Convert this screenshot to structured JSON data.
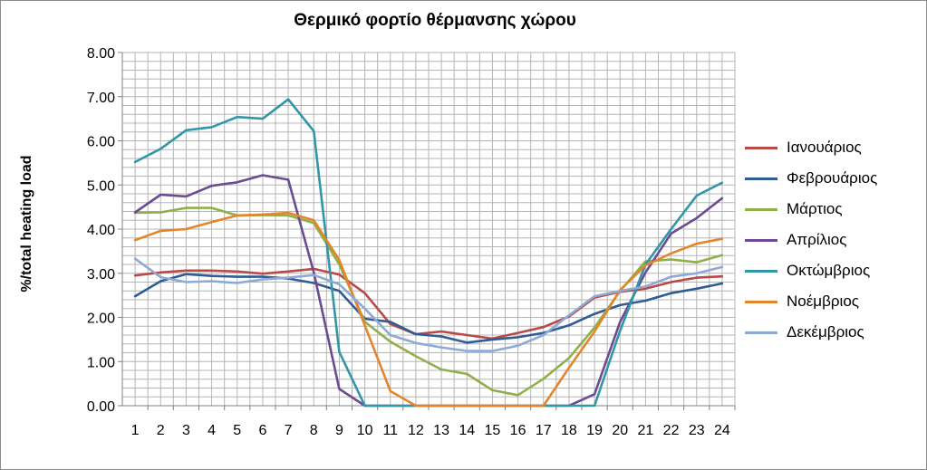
{
  "chart_data": {
    "type": "line",
    "title": "Θερμικό φορτίο θέρμανσης χώρου",
    "xlabel": "",
    "ylabel": "%/total heating load",
    "ylim": [
      0,
      8
    ],
    "yticks": [
      "0.00",
      "1.00",
      "2.00",
      "3.00",
      "4.00",
      "5.00",
      "6.00",
      "7.00",
      "8.00"
    ],
    "x": [
      1,
      2,
      3,
      4,
      5,
      6,
      7,
      8,
      9,
      10,
      11,
      12,
      13,
      14,
      15,
      16,
      17,
      18,
      19,
      20,
      21,
      22,
      23,
      24
    ],
    "grid": true,
    "legend_position": "right",
    "series": [
      {
        "name": "Ιανουάριος",
        "color": "#b94a48",
        "values": [
          2.95,
          3.02,
          3.06,
          3.06,
          3.04,
          2.99,
          3.04,
          3.1,
          2.97,
          2.55,
          1.85,
          1.62,
          1.68,
          1.6,
          1.52,
          1.65,
          1.78,
          2.02,
          2.45,
          2.58,
          2.65,
          2.8,
          2.9,
          2.93
        ]
      },
      {
        "name": "Φεβρουάριος",
        "color": "#2f5d93",
        "values": [
          2.48,
          2.82,
          2.98,
          2.94,
          2.92,
          2.92,
          2.88,
          2.78,
          2.6,
          1.97,
          1.9,
          1.62,
          1.57,
          1.43,
          1.5,
          1.55,
          1.65,
          1.82,
          2.08,
          2.28,
          2.38,
          2.55,
          2.65,
          2.77
        ]
      },
      {
        "name": "Μάρτιος",
        "color": "#8faf4a",
        "values": [
          4.37,
          4.38,
          4.48,
          4.48,
          4.31,
          4.32,
          4.31,
          4.14,
          3.2,
          1.9,
          1.45,
          1.12,
          0.82,
          0.72,
          0.35,
          0.24,
          0.61,
          1.08,
          1.77,
          2.6,
          3.27,
          3.31,
          3.25,
          3.41
        ]
      },
      {
        "name": "Απρίλιος",
        "color": "#6c4b92",
        "values": [
          4.38,
          4.78,
          4.74,
          4.98,
          5.06,
          5.22,
          5.12,
          3.02,
          0.38,
          0.0,
          0.0,
          0.0,
          0.0,
          0.0,
          0.0,
          0.0,
          0.0,
          0.0,
          0.26,
          1.9,
          3.02,
          3.9,
          4.25,
          4.7
        ]
      },
      {
        "name": "Οκτώμβριος",
        "color": "#3196a8",
        "values": [
          5.52,
          5.82,
          6.24,
          6.31,
          6.54,
          6.5,
          6.94,
          6.22,
          1.22,
          0.0,
          0.0,
          0.0,
          0.0,
          0.0,
          0.0,
          0.0,
          0.0,
          0.0,
          0.0,
          1.7,
          3.2,
          4.0,
          4.76,
          5.05
        ]
      },
      {
        "name": "Νοέμβριος",
        "color": "#e5852b",
        "values": [
          3.75,
          3.96,
          4.0,
          4.16,
          4.31,
          4.33,
          4.37,
          4.2,
          3.3,
          1.82,
          0.33,
          0.0,
          0.0,
          0.0,
          0.0,
          0.0,
          0.0,
          0.86,
          1.68,
          2.62,
          3.18,
          3.45,
          3.67,
          3.78
        ]
      },
      {
        "name": "Δεκέμβριος",
        "color": "#8eaad4",
        "values": [
          3.33,
          2.91,
          2.8,
          2.82,
          2.78,
          2.86,
          2.9,
          2.96,
          2.75,
          2.2,
          1.6,
          1.42,
          1.32,
          1.24,
          1.24,
          1.36,
          1.6,
          2.05,
          2.48,
          2.6,
          2.7,
          2.92,
          3.0,
          3.14
        ]
      }
    ]
  }
}
